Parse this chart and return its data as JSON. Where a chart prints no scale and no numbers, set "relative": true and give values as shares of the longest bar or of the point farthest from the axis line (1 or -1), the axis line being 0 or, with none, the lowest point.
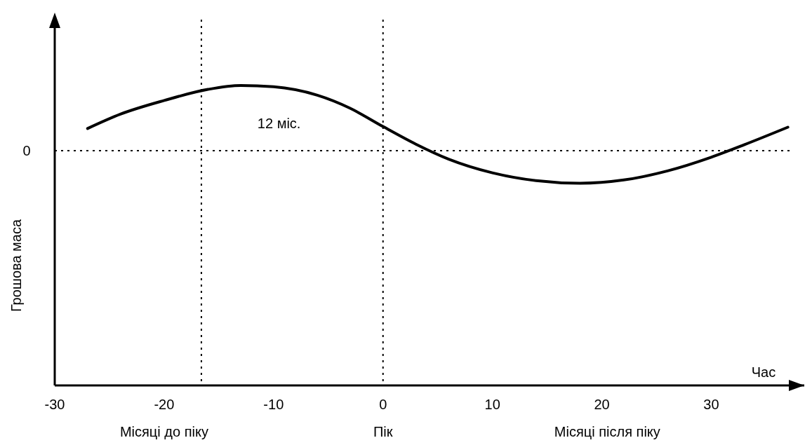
{
  "chart_data": {
    "type": "line",
    "relative": true,
    "xlabel": "Час",
    "ylabel": "Грошова маса",
    "x": [
      -27,
      -24,
      -20,
      -16,
      -13,
      -10,
      -6,
      -3,
      0,
      3,
      6,
      10,
      14,
      18,
      22,
      26,
      30,
      33,
      37
    ],
    "series": [
      {
        "color": "#000000",
        "values": [
          0.34,
          0.56,
          0.77,
          0.94,
          1.0,
          0.98,
          0.85,
          0.65,
          0.37,
          0.1,
          -0.13,
          -0.34,
          -0.46,
          -0.5,
          -0.45,
          -0.31,
          -0.1,
          0.09,
          0.36
        ]
      }
    ],
    "xlim": [
      -30,
      38.5
    ],
    "xticks": [
      -30,
      -20,
      -10,
      0,
      10,
      20,
      30
    ],
    "ref_lines": [
      {
        "axis": "y",
        "value": 0,
        "label": "0",
        "line_style": "dotted"
      },
      {
        "axis": "x",
        "value": -16.6,
        "line_style": "dotted"
      },
      {
        "axis": "x",
        "value": 0,
        "line_style": "dotted"
      }
    ],
    "annotations": [
      "12 міс.",
      "Місяці до піку",
      "Пік",
      "Місяці після піку"
    ],
    "grid": false,
    "legend": false,
    "line_style": "solid",
    "marker": "none"
  }
}
